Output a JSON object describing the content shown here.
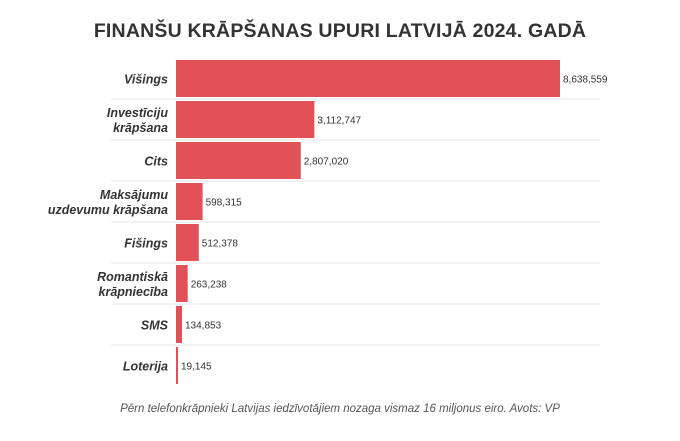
{
  "title": "FINANŠU KRĀPŠANAS UPURI LATVIJĀ 2024. GADĀ",
  "caption": "Pērn telefonkrāpnieki Latvijas iedzīvotājiem nozaga vismaz 16 miljonus eiro. Avots: VP",
  "colors": {
    "bar": "#e05257",
    "gridline": "#e6e6e6",
    "text": "#333333"
  },
  "chart_data": {
    "type": "bar",
    "orientation": "horizontal",
    "title": "FINANŠU KRĀPŠANAS UPURI LATVIJĀ 2024. GADĀ",
    "categories": [
      [
        "Višings"
      ],
      [
        "Investīciju",
        "krāpšana"
      ],
      [
        "Cits"
      ],
      [
        "Maksājumu",
        "uzdevumu krāpšana"
      ],
      [
        "Fišings"
      ],
      [
        "Romantiskā",
        "krāpniecība"
      ],
      [
        "SMS"
      ],
      [
        "Loterija"
      ]
    ],
    "values": [
      8638559,
      3112747,
      2807020,
      598315,
      512378,
      263238,
      134853,
      19145
    ],
    "value_labels": [
      "8,638,559",
      "3,112,747",
      "2,807,020",
      "598,315",
      "512,378",
      "263,238",
      "134,853",
      "19,145"
    ],
    "xlim": [
      0,
      8638559
    ],
    "grid": false,
    "legend": "none"
  }
}
